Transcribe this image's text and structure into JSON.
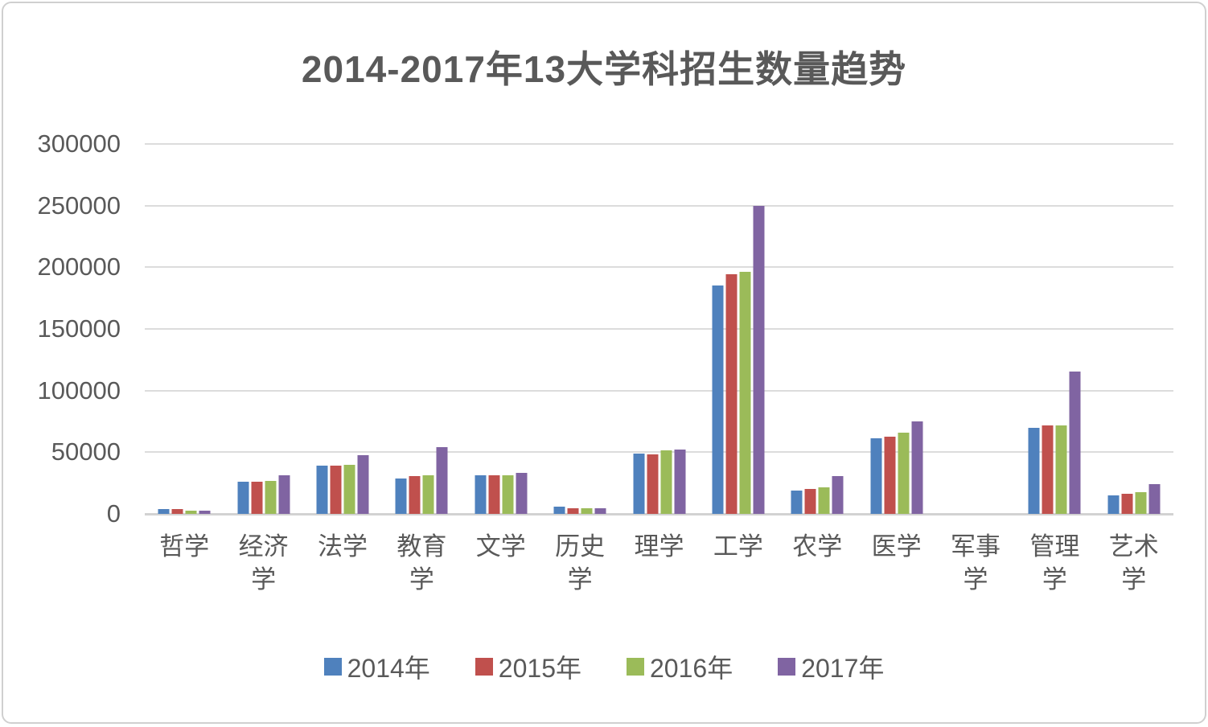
{
  "title": "2014-2017年13大学科招生数量趋势",
  "text_color": "#595959",
  "gridline_color": "#dcdcdc",
  "chart_data": {
    "type": "bar",
    "title": "2014-2017年13大学科招生数量趋势",
    "xlabel": "",
    "ylabel": "",
    "ylim": [
      0,
      300000
    ],
    "y_ticks": [
      300000,
      250000,
      200000,
      150000,
      100000,
      50000,
      0
    ],
    "grid": true,
    "legend_position": "bottom",
    "categories": [
      "哲学",
      "经济学",
      "法学",
      "教育学",
      "文学",
      "历史学",
      "理学",
      "工学",
      "农学",
      "医学",
      "军事学",
      "管理学",
      "艺术学"
    ],
    "series": [
      {
        "name": "2014年",
        "color": "#4F81BD",
        "values": [
          4000,
          26000,
          39000,
          29000,
          31500,
          5700,
          49000,
          185000,
          19000,
          61000,
          0,
          70000,
          15000
        ]
      },
      {
        "name": "2015年",
        "color": "#C0504D",
        "values": [
          3900,
          26000,
          39000,
          30500,
          31000,
          4500,
          48500,
          194500,
          20000,
          62500,
          0,
          71500,
          16000
        ]
      },
      {
        "name": "2016年",
        "color": "#9BBB59",
        "values": [
          2700,
          27000,
          39500,
          31500,
          31000,
          4600,
          51500,
          196500,
          21500,
          66000,
          0,
          71500,
          17500
        ]
      },
      {
        "name": "2017年",
        "color": "#8064A2",
        "values": [
          2900,
          31500,
          47500,
          54000,
          33000,
          4800,
          52000,
          250000,
          30500,
          75000,
          0,
          115500,
          24000
        ]
      }
    ]
  }
}
